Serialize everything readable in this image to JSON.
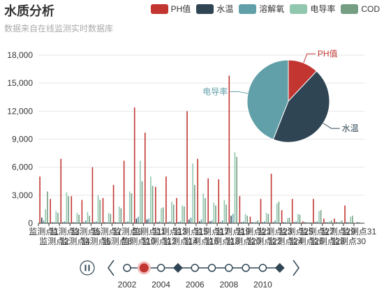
{
  "title": "水质分析",
  "subtitle": "数据来自在线监测实时数据库",
  "colors": {
    "ph": "#c23531",
    "temp": "#2f4554",
    "do": "#61a0a8",
    "cond": "#91c7ae",
    "cod": "#749f83",
    "timeline": "#304654",
    "timeline_active": "#c23531"
  },
  "timeline": {
    "labels": [
      "2002",
      "2004",
      "2006",
      "2008",
      "2010"
    ],
    "play_icon": "pause-icon",
    "prev_icon": "chevron-left-icon",
    "next_icon": "chevron-right-icon",
    "current_index": 1,
    "node_shapes": [
      "circle",
      "circle",
      "circle",
      "diamond",
      "circle",
      "circle",
      "circle",
      "circle",
      "circle",
      "diamond"
    ]
  },
  "chart_data": [
    {
      "type": "bar",
      "legend": [
        "PH值",
        "水温",
        "溶解氧",
        "电导率",
        "COD"
      ],
      "legend_position": "top-right",
      "categories": [
        "监测点1",
        "监测点2",
        "监测点3",
        "监测点4",
        "监测点5",
        "监测点6",
        "监测点7",
        "监测点8",
        "监测点9",
        "监测点10",
        "监测点11",
        "监测点12",
        "监测点13",
        "监测点14",
        "监测点15",
        "监测点16",
        "监测点17",
        "监测点18",
        "监测点19",
        "监测点20",
        "监测点21",
        "监测点22",
        "监测点23",
        "监测点24",
        "监测点25",
        "监测点26",
        "监测点27",
        "监测点28",
        "监测点29",
        "监测点30",
        "监测点31"
      ],
      "series": [
        {
          "name": "PH值",
          "values": [
            5000,
            2600,
            6900,
            2900,
            2500,
            6000,
            2700,
            4100,
            6700,
            12400,
            9700,
            3900,
            5000,
            2700,
            12000,
            6900,
            4800,
            4700,
            15800,
            2900,
            700,
            2600,
            5300,
            1400,
            2600,
            200,
            2600,
            500,
            500,
            1900,
            0
          ]
        },
        {
          "name": "水温",
          "values": [
            600,
            100,
            100,
            100,
            100,
            100,
            100,
            100,
            100,
            500,
            400,
            100,
            100,
            100,
            400,
            200,
            200,
            100,
            800,
            100,
            100,
            100,
            100,
            100,
            100,
            100,
            100,
            100,
            100,
            100,
            100
          ]
        },
        {
          "name": "溶解氧",
          "values": [
            300,
            100,
            200,
            100,
            300,
            200,
            100,
            100,
            200,
            700,
            500,
            200,
            200,
            200,
            600,
            400,
            300,
            300,
            1000,
            200,
            100,
            200,
            300,
            100,
            200,
            100,
            200,
            100,
            100,
            100,
            100
          ]
        },
        {
          "name": "电导率",
          "values": [
            1500,
            1300,
            3300,
            1100,
            1200,
            3000,
            1100,
            1800,
            3400,
            6700,
            5000,
            1600,
            2300,
            1900,
            6400,
            3200,
            2200,
            2500,
            7600,
            1000,
            200,
            1100,
            2100,
            500,
            1000,
            100,
            1300,
            200,
            200,
            700,
            0
          ]
        },
        {
          "name": "COD",
          "values": [
            3400,
            1100,
            2900,
            900,
            800,
            2500,
            1000,
            1600,
            3200,
            4500,
            4000,
            1700,
            2000,
            1800,
            4100,
            2700,
            1900,
            2000,
            7100,
            800,
            300,
            1000,
            2300,
            600,
            900,
            100,
            1400,
            300,
            300,
            800,
            0
          ]
        }
      ],
      "ylim": [
        0,
        18000
      ],
      "yticks": [
        "0",
        "3,000",
        "6,000",
        "9,000",
        "12,000",
        "15,000",
        "18,000"
      ],
      "grid": true,
      "tick_labels_row1": [
        "监测点1",
        "监测点3",
        "监测点5",
        "监测点7",
        "监测点9",
        "监测点11",
        "监测点13",
        "监测点15",
        "监测点17",
        "监测点19",
        "监测点21",
        "监测点23",
        "监测点25",
        "监测点27",
        "监测点29",
        "监测点31"
      ],
      "tick_labels_row2": [
        "监测点2",
        "监测点4",
        "监测点6",
        "监测点8",
        "监测点10",
        "监测点12",
        "监测点14",
        "监测点16",
        "监测点18",
        "监测点20",
        "监测点22",
        "监测点24",
        "监测点26",
        "监测点28",
        "监测点30"
      ]
    },
    {
      "type": "pie",
      "slices": [
        {
          "name": "PH值",
          "value": 12
        },
        {
          "name": "水温",
          "value": 44
        },
        {
          "name": "电导率",
          "value": 44
        }
      ],
      "labels_shown": [
        "PH值",
        "水温",
        "电导率"
      ]
    }
  ]
}
